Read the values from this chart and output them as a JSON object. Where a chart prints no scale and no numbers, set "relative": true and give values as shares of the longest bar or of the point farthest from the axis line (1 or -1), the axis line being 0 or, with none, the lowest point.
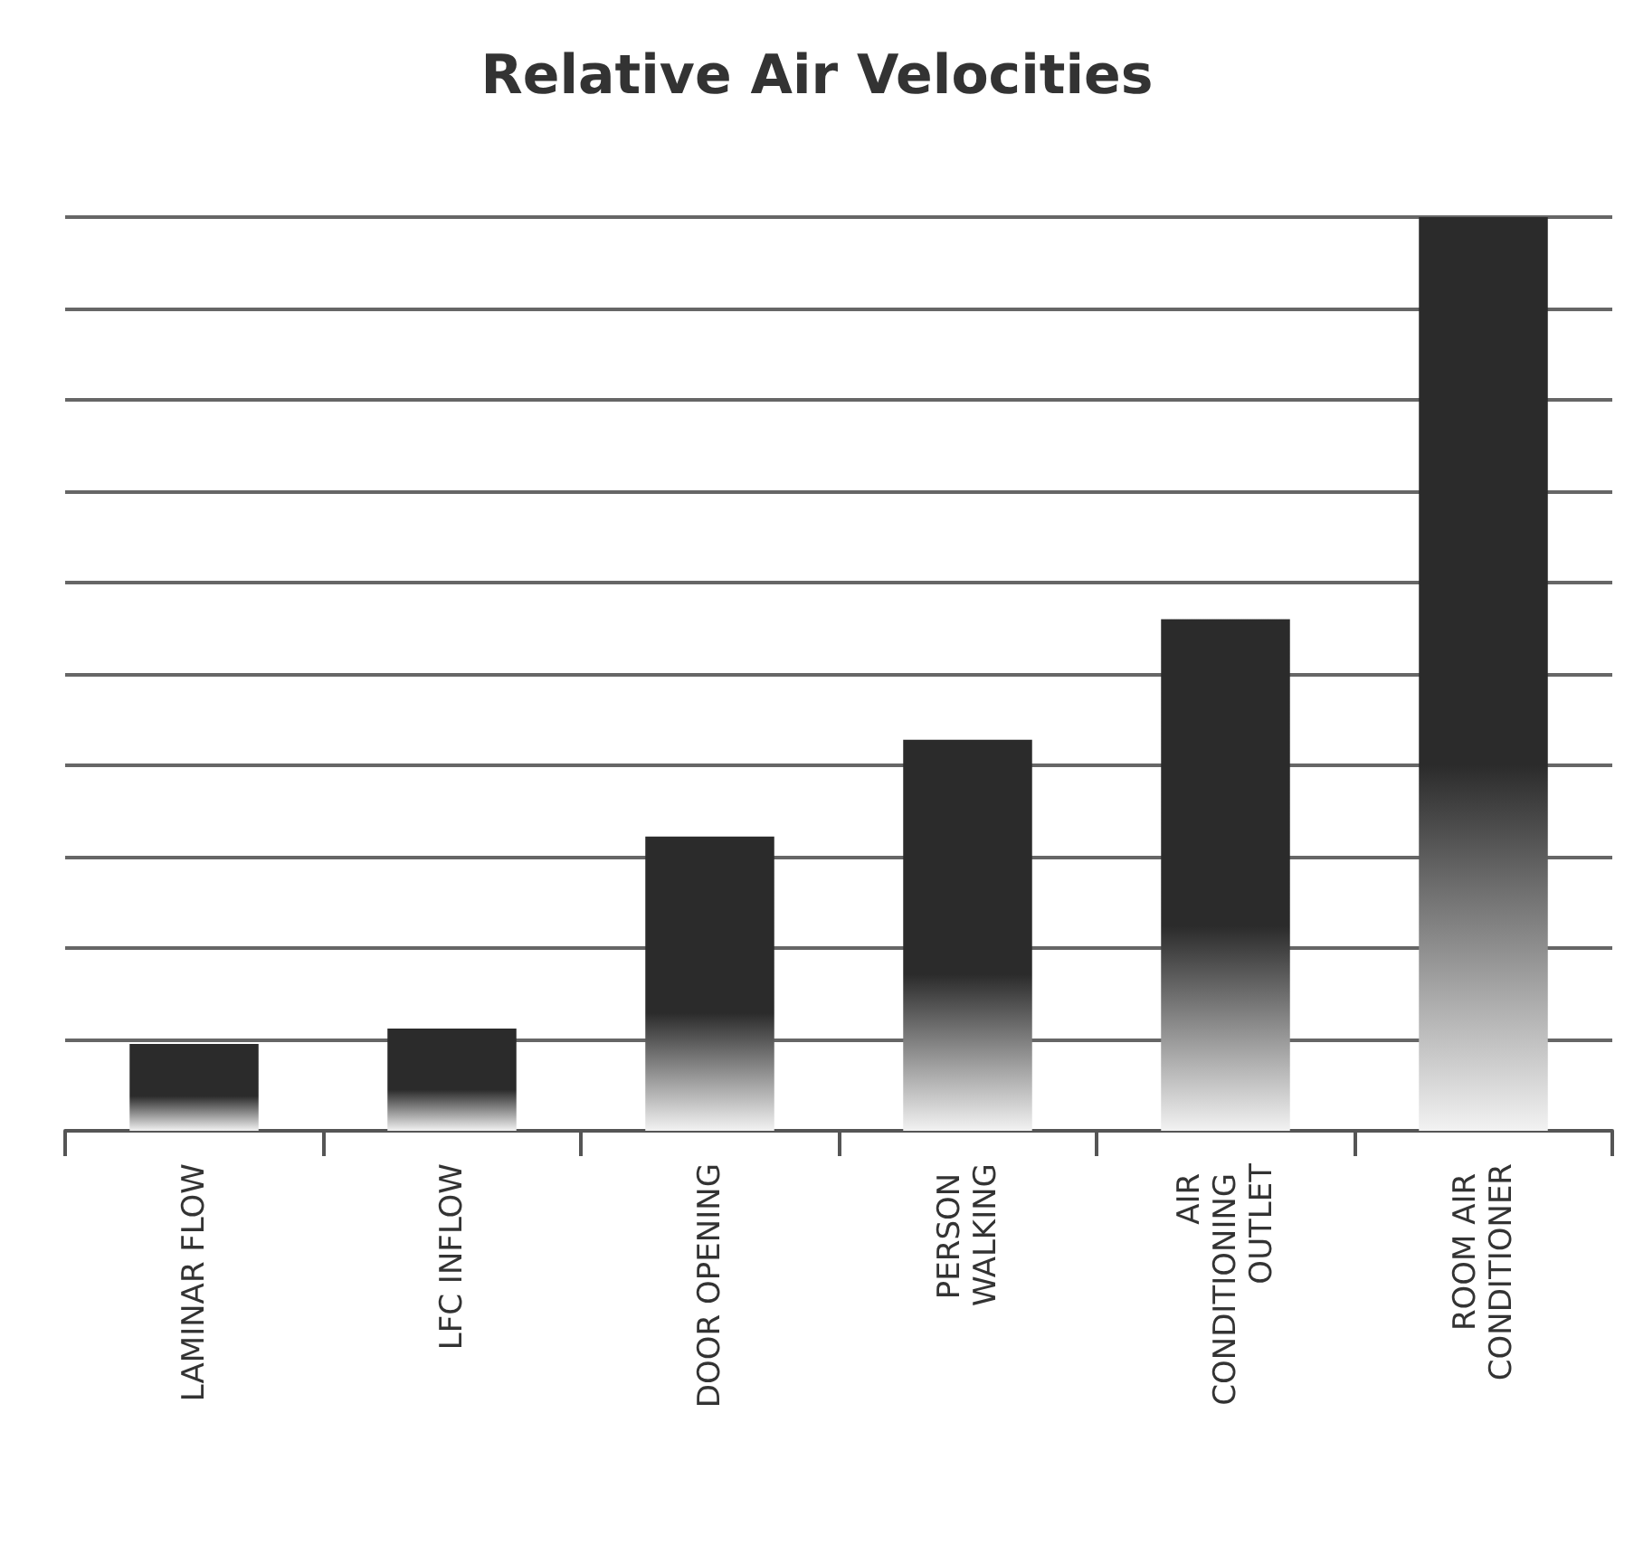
{
  "chart_data": {
    "type": "bar",
    "title": "Relative Air Velocities",
    "relative": true,
    "grid": "y",
    "color": "#2b2b2b",
    "categories": [
      "LAMINAR FLOW",
      "LFC INFLOW",
      "DOOR OPENING",
      "PERSON WALKING",
      "AIR CONDITIONING OUTLET",
      "ROOM AIR CONDITIONER"
    ],
    "values": [
      0.095,
      0.112,
      0.322,
      0.428,
      0.56,
      1
    ]
  }
}
